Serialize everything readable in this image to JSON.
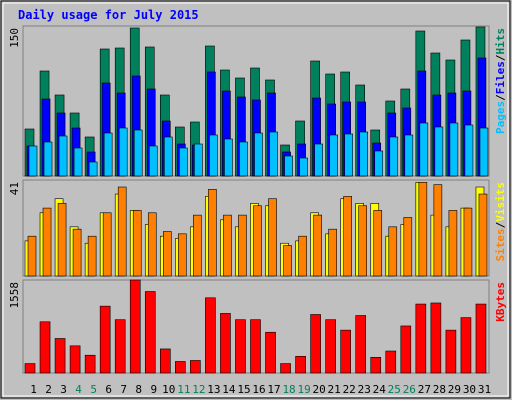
{
  "chart_data": [
    {
      "type": "bar",
      "title": "Daily usage for July 2015",
      "ylim": [
        0,
        150
      ],
      "yticks": [
        150
      ],
      "legend_separator": "/",
      "series": [
        {
          "name": "Hits",
          "color": "#00805c",
          "values": [
            47,
            105,
            81,
            63,
            39,
            127,
            128,
            148,
            129,
            81,
            49,
            54,
            130,
            106,
            98,
            108,
            96,
            31,
            55,
            115,
            102,
            104,
            91,
            46,
            75,
            87,
            145,
            123,
            116,
            136,
            149
          ]
        },
        {
          "name": "Files",
          "color": "#0000ff",
          "values": [
            30,
            77,
            63,
            48,
            24,
            93,
            83,
            100,
            87,
            55,
            32,
            31,
            104,
            85,
            79,
            76,
            83,
            24,
            32,
            78,
            72,
            74,
            74,
            33,
            63,
            68,
            105,
            81,
            83,
            85,
            118
          ]
        },
        {
          "name": "Pages",
          "color": "#00c0ff",
          "values": [
            30,
            34,
            40,
            28,
            14,
            43,
            48,
            46,
            30,
            39,
            28,
            32,
            41,
            37,
            34,
            43,
            44,
            20,
            18,
            32,
            41,
            42,
            44,
            25,
            39,
            41,
            53,
            49,
            53,
            51,
            48
          ]
        }
      ]
    },
    {
      "type": "bar",
      "ylim": [
        0,
        41
      ],
      "yticks": [
        41
      ],
      "legend_separator": "/",
      "series": [
        {
          "name": "Visits",
          "color": "#ffff00",
          "values": [
            15,
            27,
            33,
            21,
            14,
            27,
            35,
            28,
            22,
            17,
            16,
            21,
            34,
            24,
            21,
            31,
            30,
            14,
            15,
            27,
            18,
            33,
            31,
            31,
            17,
            22,
            40,
            26,
            21,
            29,
            38
          ]
        },
        {
          "name": "Sites",
          "color": "#ff8000",
          "values": [
            17,
            29,
            31,
            20,
            17,
            27,
            38,
            28,
            27,
            19,
            18,
            26,
            37,
            26,
            26,
            30,
            33,
            13,
            17,
            26,
            20,
            34,
            30,
            28,
            21,
            25,
            40,
            39,
            28,
            29,
            35
          ]
        }
      ]
    },
    {
      "type": "bar",
      "ylim": [
        0,
        1558
      ],
      "yticks": [
        1558
      ],
      "categories": [
        "1",
        "2",
        "3",
        "4",
        "5",
        "6",
        "7",
        "8",
        "9",
        "10",
        "11",
        "12",
        "13",
        "14",
        "15",
        "16",
        "17",
        "18",
        "19",
        "20",
        "21",
        "22",
        "23",
        "24",
        "25",
        "26",
        "27",
        "28",
        "29",
        "30",
        "31"
      ],
      "category_colors": [
        "#000000",
        "#000000",
        "#000000",
        "#00805c",
        "#00805c",
        "#000000",
        "#000000",
        "#000000",
        "#000000",
        "#000000",
        "#00805c",
        "#00805c",
        "#000000",
        "#000000",
        "#000000",
        "#000000",
        "#000000",
        "#00805c",
        "#00805c",
        "#000000",
        "#000000",
        "#000000",
        "#000000",
        "#000000",
        "#00805c",
        "#00805c",
        "#000000",
        "#000000",
        "#000000",
        "#000000",
        "#000000"
      ],
      "series": [
        {
          "name": "KBytes",
          "color": "#ff0000",
          "values": [
            158,
            858,
            578,
            455,
            298,
            1120,
            893,
            1558,
            1365,
            403,
            193,
            210,
            1260,
            998,
            893,
            893,
            683,
            158,
            280,
            980,
            893,
            718,
            963,
            263,
            368,
            788,
            1155,
            1173,
            718,
            928,
            1155
          ]
        }
      ]
    }
  ]
}
